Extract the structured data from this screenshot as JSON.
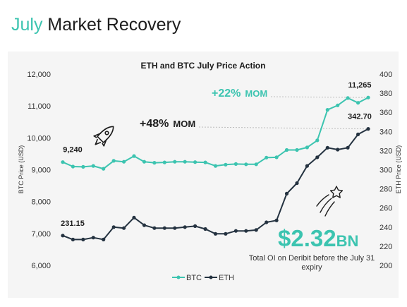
{
  "header": {
    "title_accent": "July",
    "title_rest": " Market Recovery"
  },
  "colors": {
    "btc": "#3cc4b0",
    "eth": "#243240",
    "accent": "#3cc4b0",
    "panel": "#f5f5f5"
  },
  "annotations": {
    "btc_change_value": "+22%",
    "btc_change_suffix": "MOM",
    "eth_change_value": "+48%",
    "eth_change_suffix": "MOM",
    "oi_value": "$2.32",
    "oi_unit": "BN",
    "oi_caption_line1": "Total OI on Deribit before the July 31",
    "oi_caption_line2": "expiry"
  },
  "icons": [
    "rocket-icon",
    "shooting-star-icon"
  ],
  "chart_data": {
    "type": "line",
    "title": "ETH and BTC July Price Action",
    "ylabel_left": "BTC Price (USD)",
    "ylabel_right": "ETH Price (USD)",
    "ylim_left": [
      6000,
      12000
    ],
    "ylim_right": [
      200,
      400
    ],
    "yticks_left": [
      "6,000",
      "7,000",
      "8,000",
      "9,000",
      "10,000",
      "11,000",
      "12,000"
    ],
    "yticks_right": [
      "200",
      "220",
      "240",
      "260",
      "280",
      "300",
      "320",
      "340",
      "360",
      "380",
      "400"
    ],
    "x": [
      1,
      2,
      3,
      4,
      5,
      6,
      7,
      8,
      9,
      10,
      11,
      12,
      13,
      14,
      15,
      16,
      17,
      18,
      19,
      20,
      21,
      22,
      23,
      24,
      25,
      26,
      27,
      28,
      29,
      30,
      31
    ],
    "grid": false,
    "legend_position": "bottom",
    "series": [
      {
        "name": "BTC",
        "axis": "left",
        "values": [
          9240,
          9100,
          9090,
          9120,
          9030,
          9280,
          9250,
          9430,
          9250,
          9220,
          9230,
          9250,
          9250,
          9240,
          9230,
          9120,
          9160,
          9180,
          9170,
          9170,
          9380,
          9390,
          9620,
          9620,
          9700,
          9920,
          10880,
          11020,
          11250,
          11100,
          11265
        ]
      },
      {
        "name": "ETH",
        "axis": "right",
        "values": [
          231.15,
          227,
          227,
          229,
          227,
          240,
          239,
          250,
          242,
          239,
          239,
          239,
          240,
          241,
          238,
          233,
          233,
          236,
          236,
          237,
          245,
          247,
          275,
          286,
          304,
          313,
          323,
          321,
          323,
          337,
          342.7
        ]
      }
    ],
    "data_labels": {
      "btc_start": "9,240",
      "btc_end": "11,265",
      "eth_start": "231.15",
      "eth_end": "342.70"
    },
    "legend": [
      "BTC",
      "ETH"
    ]
  }
}
